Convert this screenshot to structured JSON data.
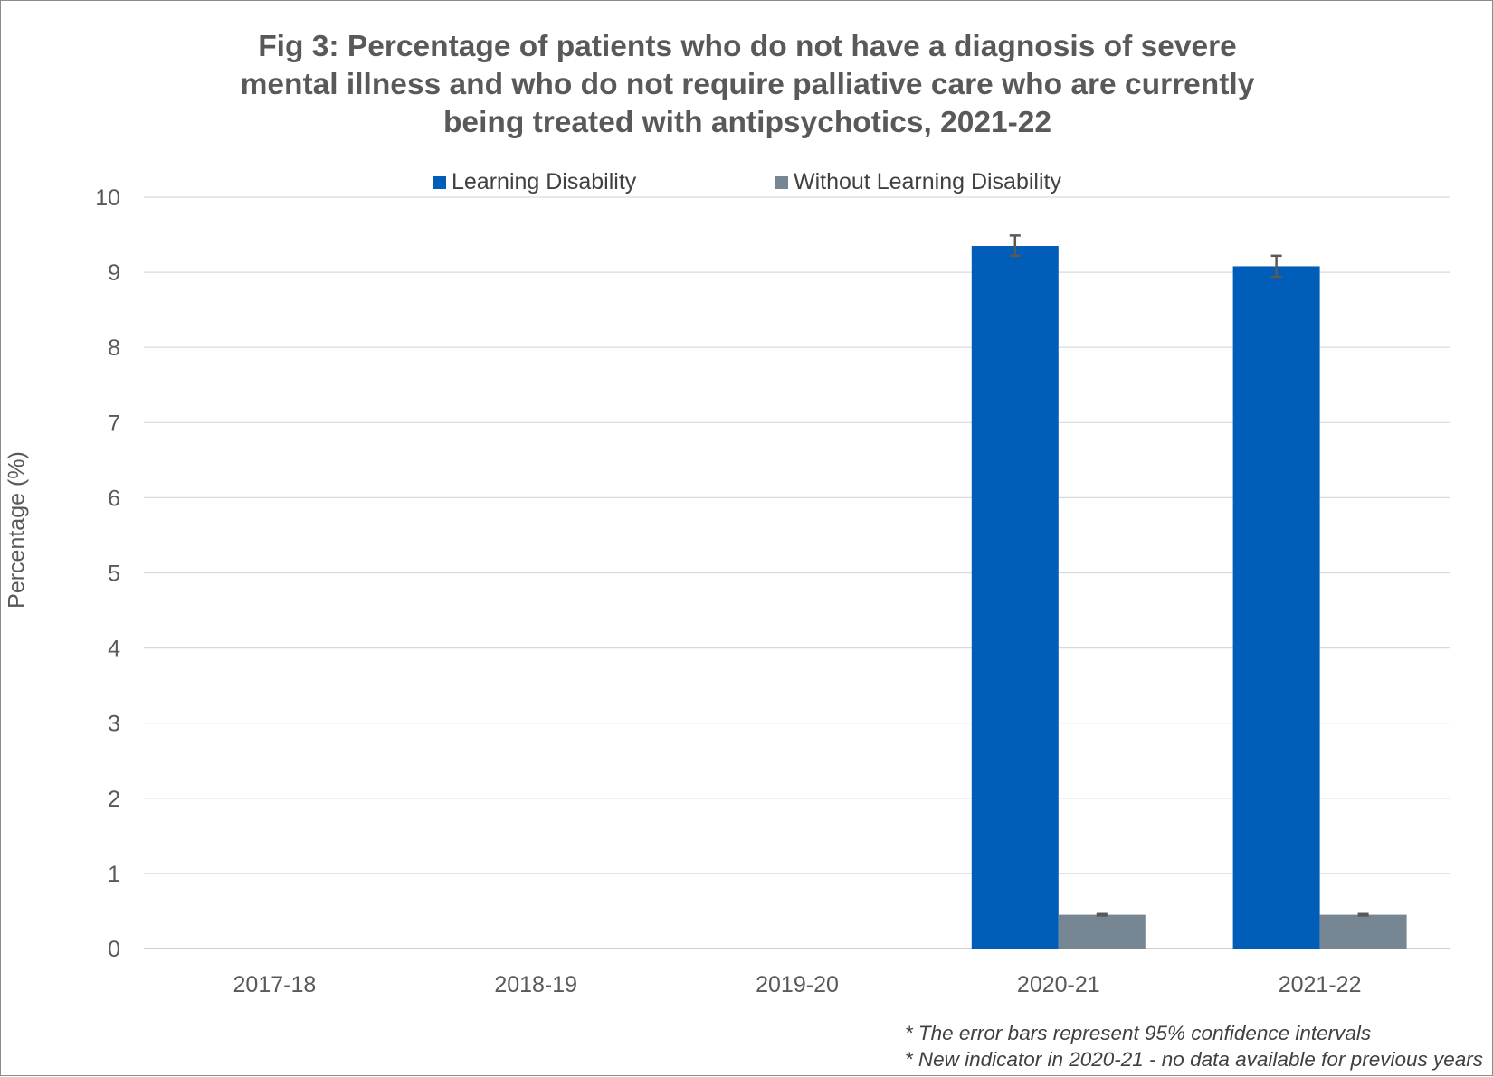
{
  "chart_data": {
    "type": "bar",
    "title_lines": [
      "Fig 3: Percentage of patients who do not have a diagnosis of severe",
      "mental illness and who do not require palliative care who are currently",
      "being treated with antipsychotics, 2021-22"
    ],
    "ylabel": "Percentage (%)",
    "ylim": [
      0,
      10
    ],
    "yticks": [
      0,
      1,
      2,
      3,
      4,
      5,
      6,
      7,
      8,
      9,
      10
    ],
    "grid": true,
    "legend_position": "top",
    "categories": [
      "2017-18",
      "2018-19",
      "2019-20",
      "2020-21",
      "2021-22"
    ],
    "series": [
      {
        "name": "Learning Disability",
        "color": "#005EB8",
        "values": [
          null,
          null,
          null,
          9.35,
          9.08
        ],
        "ci_low": [
          null,
          null,
          null,
          9.22,
          8.94
        ],
        "ci_high": [
          null,
          null,
          null,
          9.49,
          9.22
        ]
      },
      {
        "name": "Without Learning Disability",
        "color": "#768692",
        "values": [
          null,
          null,
          null,
          0.45,
          0.45
        ],
        "ci_low": [
          null,
          null,
          null,
          0.44,
          0.44
        ],
        "ci_high": [
          null,
          null,
          null,
          0.46,
          0.46
        ]
      }
    ],
    "error_bar_color": "#595959",
    "footnotes": [
      "* The error bars represent 95% confidence intervals",
      "* New indicator in 2020-21 - no data available for previous years"
    ]
  }
}
